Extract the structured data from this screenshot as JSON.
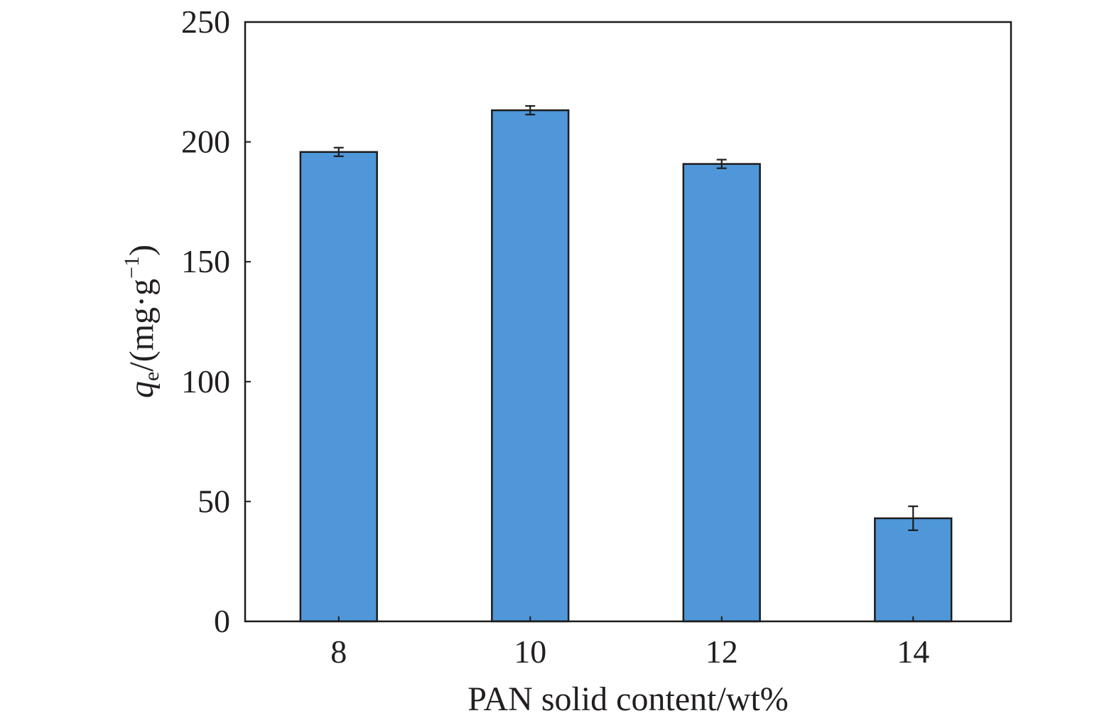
{
  "chart_data": {
    "type": "bar",
    "categories": [
      "8",
      "10",
      "12",
      "14"
    ],
    "values": [
      195.8,
      213.2,
      190.8,
      43.0
    ],
    "errors": [
      1.8,
      1.8,
      1.8,
      5.0
    ],
    "xlabel": "PAN solid content/wt%",
    "ylabel": {
      "symbol": "q",
      "subscript": "e",
      "unit_prefix": "/(mg·g",
      "unit_exponent": "−1",
      "unit_suffix": ")"
    },
    "ylim": [
      0,
      250
    ],
    "yticks": [
      "0",
      "50",
      "100",
      "150",
      "200",
      "250"
    ],
    "ytick_values": [
      0,
      50,
      100,
      150,
      200,
      250
    ],
    "grid": false,
    "legend": "none",
    "colors": {
      "bar_fill": "#4f97d9",
      "bar_edge": "#1c1c1c",
      "axis": "#1c1c1c",
      "text": "#231f20"
    }
  }
}
